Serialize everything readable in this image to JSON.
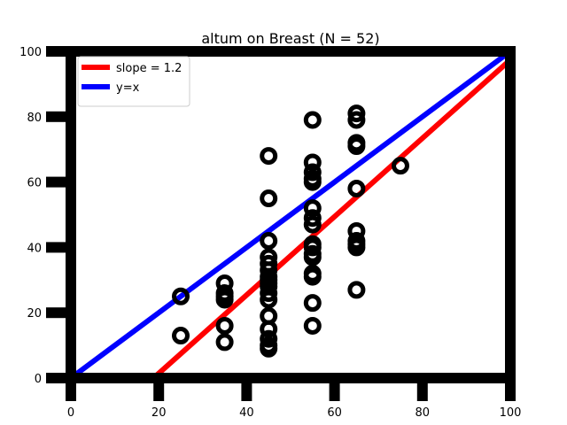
{
  "chart_data": {
    "type": "scatter",
    "title": "altum on Breast (N = 52)",
    "xlabel": "",
    "ylabel": "",
    "xlim": [
      0,
      100
    ],
    "ylim": [
      0,
      100
    ],
    "xticks": [
      "0",
      "20",
      "40",
      "60",
      "80",
      "100"
    ],
    "yticks": [
      "0",
      "20",
      "40",
      "60",
      "80",
      "100"
    ],
    "grid": false,
    "legend_position": "top-left",
    "series": [
      {
        "kind": "points",
        "color": "#000000",
        "x": [
          25,
          25,
          35,
          35,
          35,
          35,
          35,
          35,
          45,
          45,
          45,
          45,
          45,
          45,
          45,
          45,
          45,
          45,
          45,
          45,
          45,
          45,
          45,
          45,
          45,
          55,
          55,
          55,
          55,
          55,
          55,
          55,
          55,
          55,
          55,
          55,
          55,
          55,
          55,
          55,
          55,
          65,
          65,
          65,
          65,
          65,
          65,
          65,
          65,
          65,
          65,
          75
        ],
        "y": [
          25,
          13,
          29,
          26,
          24,
          16,
          11,
          25,
          68,
          55,
          42,
          37,
          33,
          31,
          29,
          26,
          24,
          19,
          15,
          12,
          10,
          9,
          28,
          30,
          35,
          79,
          66,
          63,
          61,
          60,
          52,
          49,
          47,
          41,
          38,
          37,
          32,
          31,
          23,
          16,
          40,
          81,
          79,
          72,
          71,
          58,
          45,
          42,
          41,
          40,
          27,
          65
        ]
      },
      {
        "name": "slope = 1.2",
        "kind": "line",
        "color": "#ff0000",
        "x": [
          18.8,
          100
        ],
        "y": [
          0,
          97.4
        ]
      },
      {
        "name": "y=x",
        "kind": "line",
        "color": "#0000ff",
        "x": [
          0,
          100
        ],
        "y": [
          0,
          100
        ]
      }
    ]
  }
}
